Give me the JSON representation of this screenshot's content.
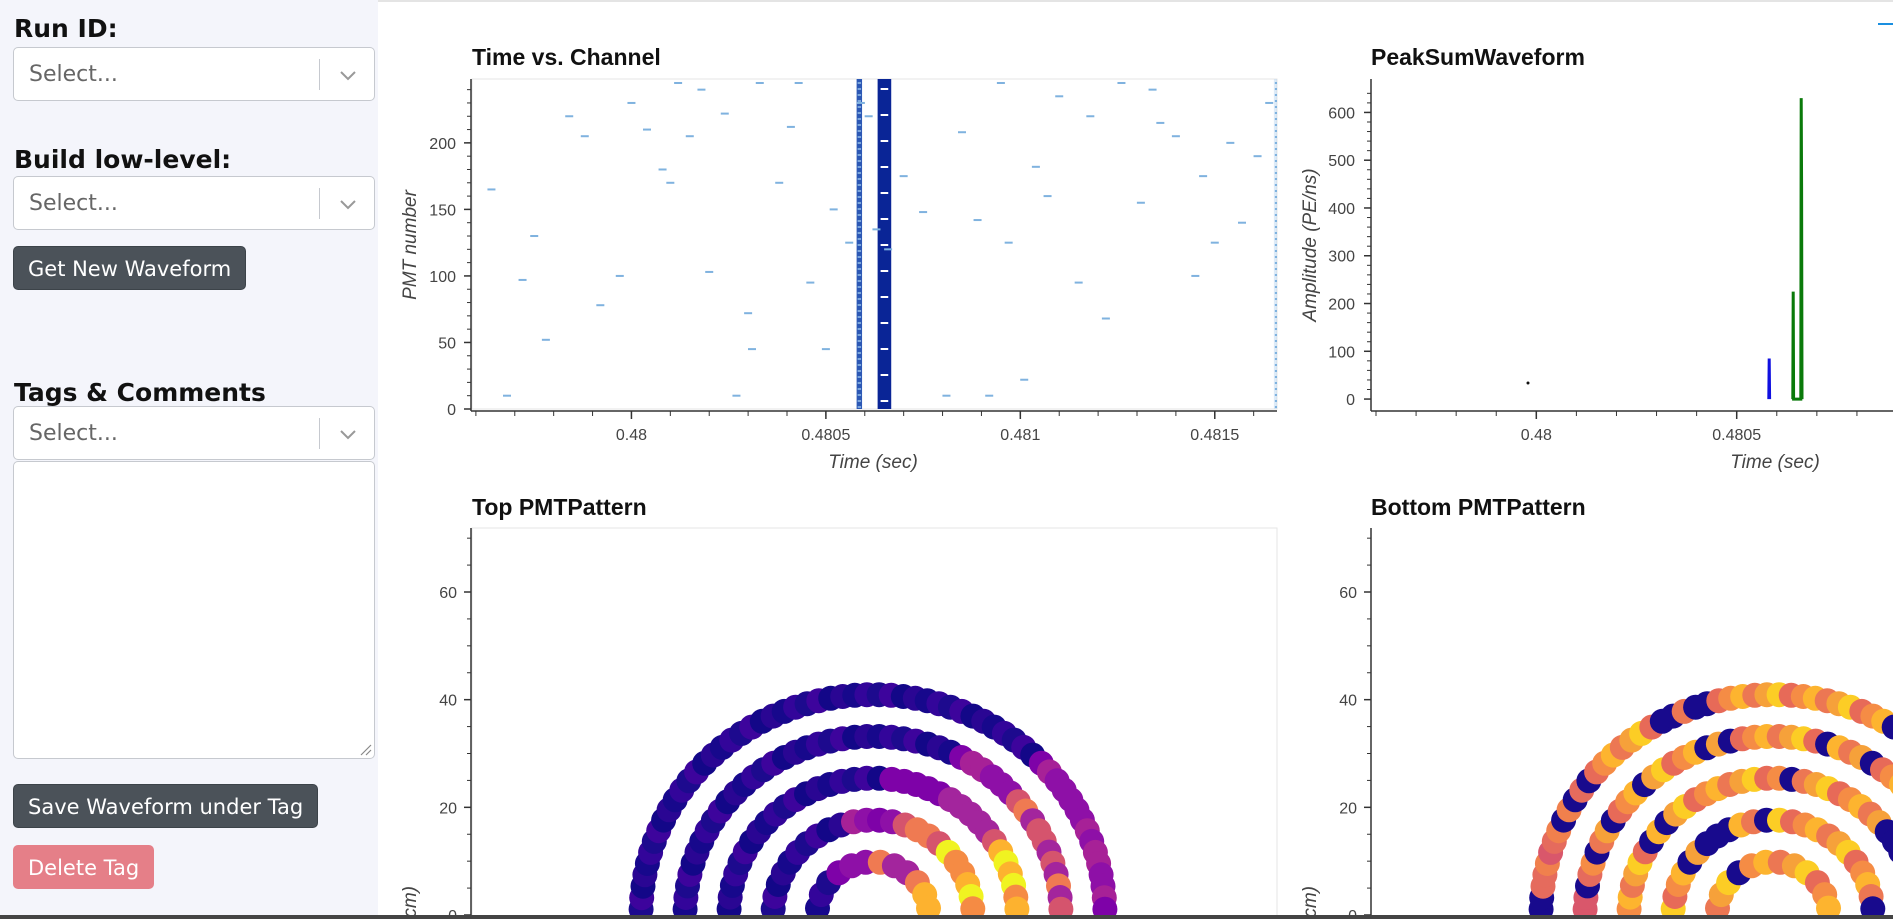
{
  "sidebar": {
    "run_id_label": "Run ID:",
    "run_id_placeholder": "Select...",
    "build_label": "Build low-level:",
    "build_placeholder": "Select...",
    "get_waveform_button": "Get New Waveform",
    "tags_label": "Tags & Comments",
    "tags_placeholder": "Select...",
    "comment_value": "",
    "save_button": "Save Waveform under Tag",
    "delete_button": "Delete Tag"
  },
  "plots": {
    "time_channel": {
      "title": "Time vs. Channel",
      "xlabel": "Time (sec)",
      "ylabel": "PMT number",
      "xticks": [
        "0.48",
        "0.4805",
        "0.481",
        "0.4815"
      ],
      "yticks": [
        "0",
        "50",
        "100",
        "150",
        "200"
      ]
    },
    "peaksum": {
      "title": "PeakSumWaveform",
      "xlabel": "Time (sec)",
      "ylabel": "Amplitude (PE/ns)",
      "xticks": [
        "0.48",
        "0.4805"
      ],
      "yticks": [
        "0",
        "100",
        "200",
        "300",
        "400",
        "500",
        "600"
      ]
    },
    "top_pattern": {
      "title": "Top PMTPattern",
      "ylabel": "(cm)",
      "yticks": [
        "0",
        "20",
        "40",
        "60"
      ]
    },
    "bottom_pattern": {
      "title": "Bottom PMTPattern",
      "ylabel": "(cm)",
      "yticks": [
        "0",
        "20",
        "40",
        "60"
      ]
    }
  },
  "chart_data": [
    {
      "type": "scatter",
      "title": "Time vs. Channel",
      "xlabel": "Time (sec)",
      "ylabel": "PMT number",
      "xlim": [
        0.47959,
        0.48166
      ],
      "ylim": [
        0,
        248
      ],
      "points": [
        [
          0.47964,
          165
        ],
        [
          0.47968,
          10
        ],
        [
          0.47972,
          97
        ],
        [
          0.47975,
          130
        ],
        [
          0.47978,
          52
        ],
        [
          0.47984,
          220
        ],
        [
          0.47988,
          205
        ],
        [
          0.47992,
          78
        ],
        [
          0.47997,
          100
        ],
        [
          0.48,
          230
        ],
        [
          0.48004,
          210
        ],
        [
          0.48008,
          180
        ],
        [
          0.4801,
          170
        ],
        [
          0.48012,
          245
        ],
        [
          0.48015,
          205
        ],
        [
          0.48018,
          240
        ],
        [
          0.4802,
          103
        ],
        [
          0.48024,
          222
        ],
        [
          0.48027,
          10
        ],
        [
          0.4803,
          72
        ],
        [
          0.48031,
          45
        ],
        [
          0.48033,
          245
        ],
        [
          0.48038,
          170
        ],
        [
          0.48041,
          212
        ],
        [
          0.48043,
          245
        ],
        [
          0.48046,
          95
        ],
        [
          0.4805,
          45
        ],
        [
          0.48052,
          150
        ],
        [
          0.48056,
          125
        ],
        [
          0.48059,
          230
        ],
        [
          0.48061,
          220
        ],
        [
          0.48063,
          135
        ],
        [
          0.48066,
          120
        ],
        [
          0.4807,
          175
        ],
        [
          0.48075,
          148
        ],
        [
          0.48081,
          10
        ],
        [
          0.48085,
          208
        ],
        [
          0.48089,
          142
        ],
        [
          0.48092,
          10
        ],
        [
          0.48095,
          245
        ],
        [
          0.48097,
          125
        ],
        [
          0.48101,
          22
        ],
        [
          0.48104,
          182
        ],
        [
          0.48107,
          160
        ],
        [
          0.4811,
          235
        ],
        [
          0.48115,
          95
        ],
        [
          0.48118,
          220
        ],
        [
          0.48122,
          68
        ],
        [
          0.48126,
          245
        ],
        [
          0.48131,
          155
        ],
        [
          0.48134,
          240
        ],
        [
          0.48136,
          215
        ],
        [
          0.4814,
          205
        ],
        [
          0.48145,
          100
        ],
        [
          0.48147,
          175
        ],
        [
          0.4815,
          125
        ],
        [
          0.48154,
          200
        ],
        [
          0.48157,
          140
        ],
        [
          0.48161,
          190
        ],
        [
          0.48164,
          230
        ]
      ],
      "bands": [
        {
          "x_start": 0.480579,
          "x_end": 0.480593,
          "shade": "medium",
          "color": "#2c58b5"
        },
        {
          "x_start": 0.480633,
          "x_end": 0.480668,
          "shade": "dense",
          "color": "#0a2596"
        },
        {
          "x_start": 0.481652,
          "x_end": 0.481665,
          "shade": "light",
          "color": "#9ec7ea"
        }
      ],
      "grid": false
    },
    {
      "type": "line",
      "title": "PeakSumWaveform",
      "xlabel": "Time (sec)",
      "ylabel": "Amplitude (PE/ns)",
      "xlim": [
        0.47959,
        0.48089
      ],
      "ylim": [
        -25,
        670
      ],
      "series": [
        {
          "values": [
            [
              0.48058,
              0
            ],
            [
              0.480581,
              85
            ],
            [
              0.480582,
              0
            ]
          ],
          "color": "#1010e0"
        },
        {
          "values": [
            [
              0.48064,
              0
            ],
            [
              0.480641,
              225
            ],
            [
              0.480642,
              0
            ],
            [
              0.48066,
              0
            ],
            [
              0.480661,
              630
            ],
            [
              0.480662,
              440
            ],
            [
              0.480663,
              0
            ]
          ],
          "color": "#0a7a0a"
        }
      ]
    },
    {
      "type": "scatter",
      "title": "Top PMTPattern",
      "ylabel": "(cm)",
      "ylim": [
        -4,
        72
      ],
      "xlim": [
        -80,
        80
      ]
    },
    {
      "type": "scatter",
      "title": "Bottom PMTPattern",
      "ylabel": "(cm)",
      "ylim": [
        -4,
        72
      ],
      "xlim": [
        -80,
        80
      ]
    }
  ]
}
